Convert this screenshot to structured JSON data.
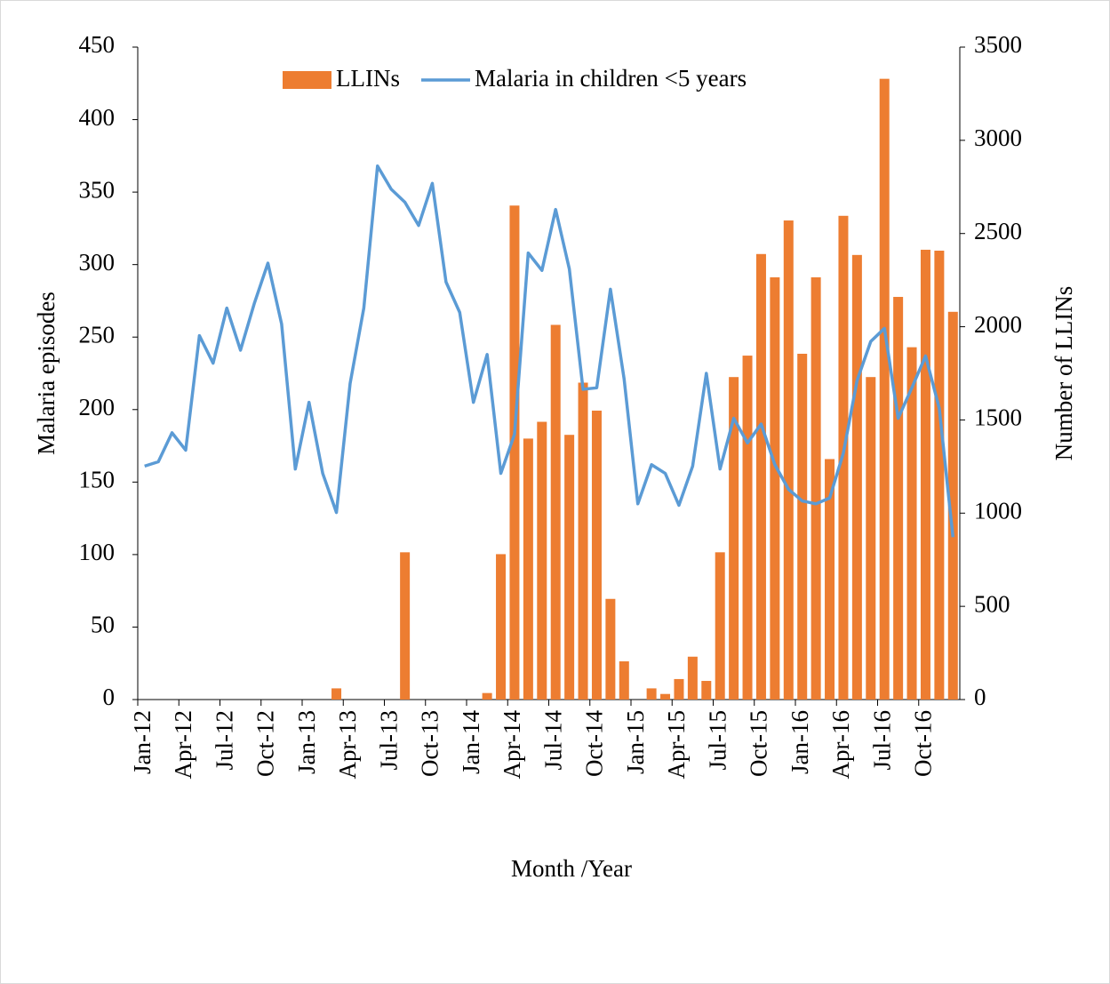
{
  "chart_data": {
    "type": "bar",
    "x_label": "Month /Year",
    "y_label": "Malaria episodes",
    "y2_label": "Number of LLINs",
    "categories": [
      "Jan-12",
      null,
      null,
      "Apr-12",
      null,
      null,
      "Jul-12",
      null,
      null,
      "Oct-12",
      null,
      null,
      "Jan-13",
      null,
      null,
      "Apr-13",
      null,
      null,
      "Jul-13",
      null,
      null,
      "Oct-13",
      null,
      null,
      "Jan-14",
      null,
      null,
      "Apr-14",
      null,
      null,
      "Jul-14",
      null,
      null,
      "Oct-14",
      null,
      null,
      "Jan-15",
      null,
      null,
      "Apr-15",
      null,
      null,
      "Jul-15",
      null,
      null,
      "Oct-15",
      null,
      null,
      "Jan-16",
      null,
      null,
      "Apr-16",
      null,
      null,
      "Jul-16",
      null,
      null,
      "Oct-16",
      null,
      null
    ],
    "series": [
      {
        "name": "LLINs",
        "type": "bar",
        "axis": "y2",
        "color": "#ED7D31",
        "values": [
          0,
          0,
          0,
          0,
          0,
          0,
          0,
          0,
          0,
          0,
          0,
          0,
          0,
          0,
          60,
          0,
          0,
          0,
          0,
          790,
          0,
          0,
          0,
          0,
          0,
          35,
          780,
          2650,
          1400,
          1490,
          2010,
          1420,
          1700,
          1550,
          540,
          205,
          0,
          60,
          30,
          110,
          230,
          100,
          790,
          1730,
          1845,
          2390,
          2265,
          2570,
          1855,
          2265,
          1290,
          2595,
          2385,
          1730,
          3330,
          2160,
          1890,
          2413,
          2408,
          2080
        ]
      },
      {
        "name": "Malaria in children <5 years",
        "type": "line",
        "axis": "y",
        "color": "#5B9BD5",
        "values": [
          161,
          164,
          184,
          172,
          251,
          232,
          270,
          241,
          273,
          301,
          259,
          159,
          205,
          156,
          129,
          218,
          270,
          368,
          352,
          343,
          327,
          356,
          288,
          267,
          205,
          238,
          156,
          183,
          308,
          296,
          338,
          297,
          214,
          215,
          283,
          221,
          135,
          162,
          156,
          134,
          161,
          225,
          159,
          194,
          177,
          190,
          162,
          145,
          137,
          135,
          139,
          170,
          220,
          247,
          256,
          194,
          215,
          237,
          201,
          112
        ]
      }
    ],
    "ylim": [
      0,
      450
    ],
    "yticks": [
      0,
      50,
      100,
      150,
      200,
      250,
      300,
      350,
      400,
      450
    ],
    "y2lim": [
      0,
      3500
    ],
    "y2ticks": [
      0,
      500,
      1000,
      1500,
      2000,
      2500,
      3000,
      3500
    ],
    "legend": "top"
  }
}
